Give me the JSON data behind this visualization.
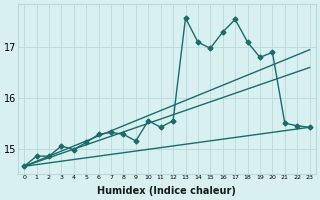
{
  "xlabel": "Humidex (Indice chaleur)",
  "ylabel": "",
  "bg_color": "#d8f0f0",
  "grid_color": "#b8dada",
  "line_color": "#1a6b6b",
  "x_ticks": [
    0,
    1,
    2,
    3,
    4,
    5,
    6,
    7,
    8,
    9,
    10,
    11,
    12,
    13,
    14,
    15,
    16,
    17,
    18,
    19,
    20,
    21,
    22,
    23
  ],
  "y_ticks": [
    15,
    16,
    17
  ],
  "xlim": [
    -0.5,
    23.5
  ],
  "ylim": [
    14.5,
    17.85
  ],
  "series": [
    {
      "x": [
        0,
        1,
        2,
        3,
        4,
        5,
        6,
        7,
        8,
        9,
        10,
        11,
        12,
        13,
        14,
        15,
        16,
        17,
        18,
        19,
        20,
        21,
        22,
        23
      ],
      "y": [
        14.65,
        14.85,
        14.85,
        15.05,
        14.98,
        15.12,
        15.28,
        15.32,
        15.28,
        15.15,
        15.55,
        15.42,
        15.55,
        17.58,
        17.1,
        16.98,
        17.3,
        17.55,
        17.1,
        16.8,
        16.9,
        15.5,
        15.45,
        15.42
      ],
      "marker": "D",
      "markersize": 2.5,
      "linewidth": 1.0
    },
    {
      "x": [
        0,
        23
      ],
      "y": [
        14.65,
        16.6
      ],
      "marker": null,
      "linewidth": 1.0
    },
    {
      "x": [
        0,
        23
      ],
      "y": [
        14.65,
        15.42
      ],
      "marker": null,
      "linewidth": 1.0
    },
    {
      "x": [
        0,
        23
      ],
      "y": [
        14.65,
        16.95
      ],
      "marker": null,
      "linewidth": 1.0
    }
  ]
}
